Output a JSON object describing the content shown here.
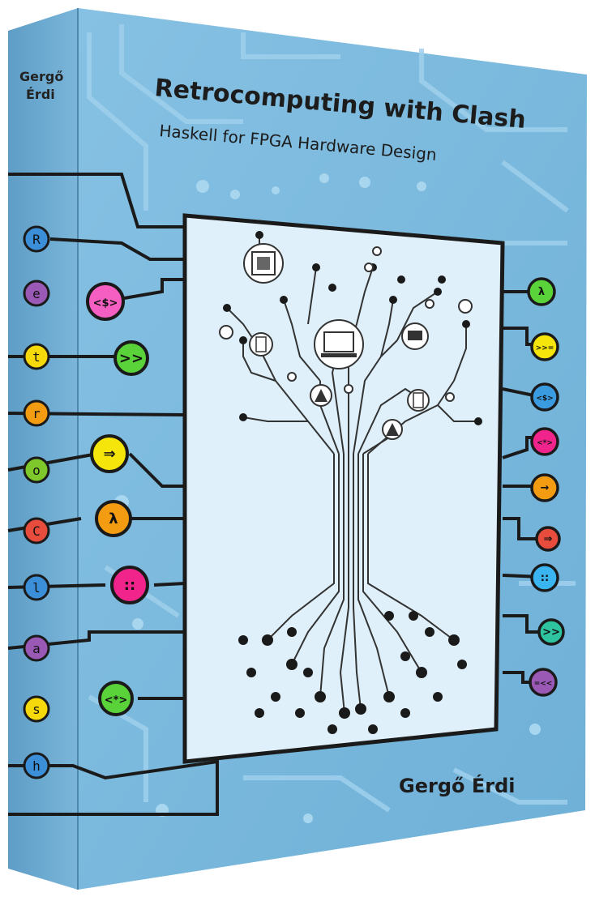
{
  "book": {
    "title": "Retrocomputing with Clash",
    "subtitle": "Haskell for FPGA Hardware Design",
    "author": "Gergő Érdi",
    "spine_author_line1": "Gergő",
    "spine_author_line2": "Érdi"
  },
  "spine_letters": [
    {
      "char": "R",
      "color": "#3b8fd8"
    },
    {
      "char": "e",
      "color": "#9b59b6"
    },
    {
      "char": "t",
      "color": "#f5d90a"
    },
    {
      "char": "r",
      "color": "#f39c12"
    },
    {
      "char": "o",
      "color": "#7ec82c"
    },
    {
      "char": "C",
      "color": "#e74c3c"
    },
    {
      "char": "l",
      "color": "#3b8fd8"
    },
    {
      "char": "a",
      "color": "#9b59b6"
    },
    {
      "char": "s",
      "color": "#f5d90a"
    },
    {
      "char": "h",
      "color": "#3b8fd8"
    }
  ],
  "left_badges": [
    {
      "symbol": "<$>",
      "color": "#f45fc1"
    },
    {
      "symbol": ">>",
      "color": "#5ad23a"
    },
    {
      "symbol": "⇒",
      "color": "#f5e50a"
    },
    {
      "symbol": "λ",
      "color": "#f39c12"
    },
    {
      "symbol": "::",
      "color": "#f0248a"
    },
    {
      "symbol": "<*>",
      "color": "#5ad23a"
    }
  ],
  "right_badges": [
    {
      "symbol": "λ",
      "color": "#5ad23a"
    },
    {
      "symbol": ">>=",
      "color": "#f5e50a"
    },
    {
      "symbol": "<$>",
      "color": "#3b9be0"
    },
    {
      "symbol": "<*>",
      "color": "#f0248a"
    },
    {
      "symbol": "→",
      "color": "#f39c12"
    },
    {
      "symbol": "⇒",
      "color": "#e74c3c"
    },
    {
      "symbol": "::",
      "color": "#3bb5f0"
    },
    {
      "symbol": ">>",
      "color": "#2ec4a0"
    },
    {
      "symbol": "=<<",
      "color": "#9b59b6"
    }
  ],
  "colors": {
    "cover_blue": "#7ab8dc",
    "spine_blue": "#6aa9d0",
    "panel_bg": "#dff0fa",
    "ink": "#1c1c1c"
  }
}
